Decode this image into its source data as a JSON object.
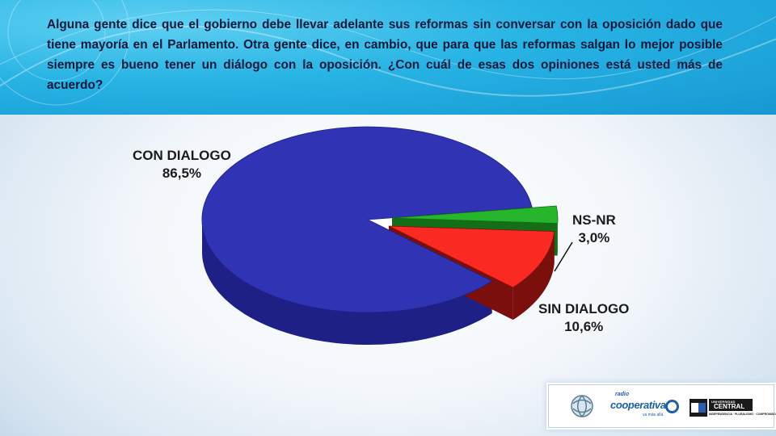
{
  "question": "Alguna gente dice que el gobierno debe llevar adelante sus reformas sin conversar con la oposición dado que tiene mayoría en el Parlamento.   Otra gente dice, en cambio, que para que las reformas salgan lo mejor posible siempre es bueno tener un diálogo con la oposición. ¿Con cuál de esas dos opiniones está usted más de acuerdo?",
  "chart_data": {
    "type": "pie",
    "slices": [
      {
        "name": "CON DIALOGO",
        "value": 86.5,
        "label": "86,5%",
        "color": "#2f33b4",
        "side": "#1e2086"
      },
      {
        "name": "NS-NR",
        "value": 3.0,
        "label": "3,0%",
        "color": "#27b62b",
        "side": "#146e17"
      },
      {
        "name": "SIN DIALOGO",
        "value": 10.6,
        "label": "10,6%",
        "color": "#fa2a22",
        "side": "#7a0f0c"
      }
    ]
  },
  "logos": {
    "cooperativa_tagline": "radio",
    "cooperativa_name": "cooperativa",
    "cooperativa_sub": "va más allá",
    "uc_small": "UNIVERSIDAD",
    "uc_big": "CENTRAL",
    "uc_foot": "INDEPENDENCIA · PLURALISMO · COMPROMISO"
  },
  "colors": {
    "header_blue": "#1fa8dd",
    "question_text": "#0b1a3a"
  }
}
